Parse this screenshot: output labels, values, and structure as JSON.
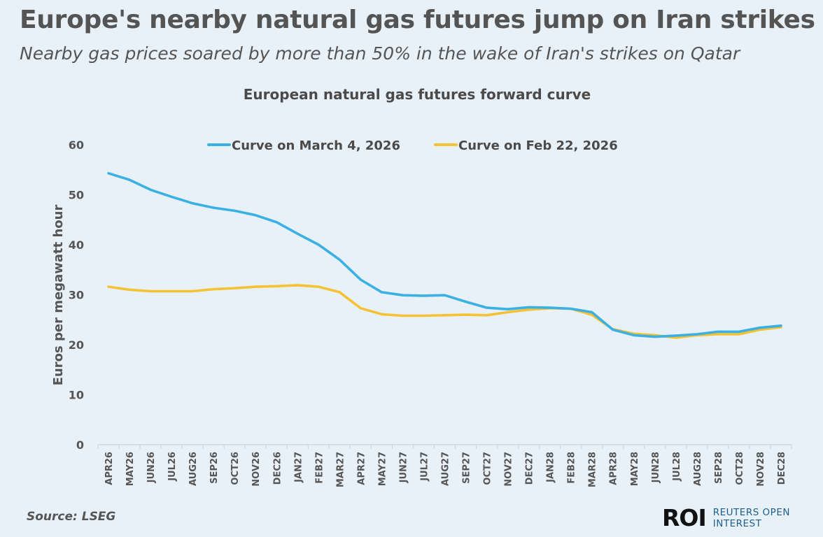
{
  "headline": "Europe's nearby natural gas futures jump on Iran strikes",
  "subheadline": "Nearby gas prices soared by more than 50% in the wake of Iran's strikes on Qatar",
  "source": "Source:  LSEG",
  "logo": {
    "mark": "ROI",
    "line1": "REUTERS OPEN",
    "line2": "INTEREST"
  },
  "colors": {
    "march4": "#3bb0e3",
    "feb22": "#f5c236",
    "background": "#e9f1f8"
  },
  "chart_data": {
    "type": "line",
    "title": "European natural gas futures forward curve",
    "ylabel": "Euros per megawatt hour",
    "xlabel": "",
    "ylim": [
      0,
      60
    ],
    "yticks": [
      0,
      10,
      20,
      30,
      40,
      50,
      60
    ],
    "grid": false,
    "legend": "top",
    "categories": [
      "APR26",
      "MAY26",
      "JUN26",
      "JUL26",
      "AUG26",
      "SEP26",
      "OCT26",
      "NOV26",
      "DEC26",
      "JAN27",
      "FEB27",
      "MAR27",
      "APR27",
      "MAY27",
      "JUN27",
      "JUL27",
      "AUG27",
      "SEP27",
      "OCT27",
      "NOV27",
      "DEC27",
      "JAN28",
      "FEB28",
      "MAR28",
      "APR28",
      "MAY28",
      "JUN28",
      "JUL28",
      "AUG28",
      "SEP28",
      "OCT28",
      "NOV28",
      "DEC28"
    ],
    "series": [
      {
        "name": "Curve on March 4, 2026",
        "color": "#3bb0e3",
        "values": [
          54.3,
          53.0,
          51.0,
          49.6,
          48.3,
          47.4,
          46.8,
          45.9,
          44.5,
          42.2,
          40.0,
          37.0,
          33.0,
          30.5,
          29.9,
          29.8,
          29.9,
          28.6,
          27.4,
          27.1,
          27.5,
          27.4,
          27.2,
          26.5,
          23.0,
          21.9,
          21.6,
          21.8,
          22.1,
          22.6,
          22.6,
          23.4,
          23.8
        ]
      },
      {
        "name": "Curve on Feb 22, 2026",
        "color": "#f5c236",
        "values": [
          31.6,
          31.0,
          30.7,
          30.7,
          30.7,
          31.1,
          31.3,
          31.6,
          31.7,
          31.9,
          31.6,
          30.5,
          27.3,
          26.1,
          25.8,
          25.8,
          25.9,
          26.0,
          25.9,
          26.5,
          27.0,
          27.3,
          27.2,
          26.0,
          23.1,
          22.2,
          21.9,
          21.4,
          21.9,
          22.1,
          22.1,
          23.0,
          23.5
        ]
      }
    ]
  }
}
